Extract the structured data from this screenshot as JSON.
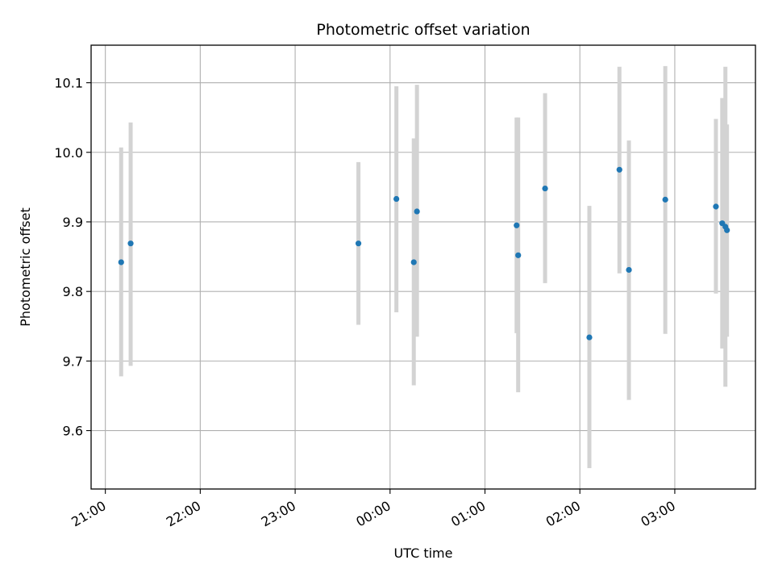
{
  "chart_data": {
    "type": "scatter",
    "title": "Photometric offset variation",
    "xlabel": "UTC time",
    "ylabel": "Photometric offset",
    "x_is_time": true,
    "x_tick_labels": [
      "21:00",
      "22:00",
      "23:00",
      "00:00",
      "01:00",
      "02:00",
      "03:00"
    ],
    "x_ticks": [
      "21:00",
      "22:00",
      "23:00",
      "00:00",
      "01:00",
      "02:00",
      "03:00"
    ],
    "xlim": [
      "20:51",
      "03:51"
    ],
    "y_ticks": [
      9.6,
      9.7,
      9.8,
      9.9,
      10.0,
      10.1
    ],
    "y_tick_labels": [
      "9.6",
      "9.7",
      "9.8",
      "9.9",
      "10.0",
      "10.1"
    ],
    "ylim": [
      9.516,
      10.154
    ],
    "grid": true,
    "marker_color": "#1f77b4",
    "errorbar_color": "#d3d3d3",
    "points": [
      {
        "time": "21:10",
        "y": 9.842,
        "err_low": 9.678,
        "err_high": 10.007
      },
      {
        "time": "21:16",
        "y": 9.869,
        "err_low": 9.693,
        "err_high": 10.043
      },
      {
        "time": "23:40",
        "y": 9.869,
        "err_low": 9.752,
        "err_high": 9.986
      },
      {
        "time": "00:04",
        "y": 9.933,
        "err_low": 9.77,
        "err_high": 10.095
      },
      {
        "time": "00:15",
        "y": 9.842,
        "err_low": 9.665,
        "err_high": 10.02
      },
      {
        "time": "00:17",
        "y": 9.915,
        "err_low": 9.735,
        "err_high": 10.097
      },
      {
        "time": "01:20",
        "y": 9.895,
        "err_low": 9.74,
        "err_high": 10.05
      },
      {
        "time": "01:21",
        "y": 9.852,
        "err_low": 9.655,
        "err_high": 10.05
      },
      {
        "time": "01:38",
        "y": 9.948,
        "err_low": 9.812,
        "err_high": 10.085
      },
      {
        "time": "02:06",
        "y": 9.734,
        "err_low": 9.546,
        "err_high": 9.923
      },
      {
        "time": "02:25",
        "y": 9.975,
        "err_low": 9.826,
        "err_high": 10.123
      },
      {
        "time": "02:31",
        "y": 9.831,
        "err_low": 9.644,
        "err_high": 10.017
      },
      {
        "time": "02:54",
        "y": 9.932,
        "err_low": 9.739,
        "err_high": 10.124
      },
      {
        "time": "03:26",
        "y": 9.922,
        "err_low": 9.797,
        "err_high": 10.048
      },
      {
        "time": "03:30",
        "y": 9.898,
        "err_low": 9.718,
        "err_high": 10.078
      },
      {
        "time": "03:32",
        "y": 9.893,
        "err_low": 9.663,
        "err_high": 10.123
      },
      {
        "time": "03:33",
        "y": 9.888,
        "err_low": 9.735,
        "err_high": 10.04
      }
    ]
  }
}
